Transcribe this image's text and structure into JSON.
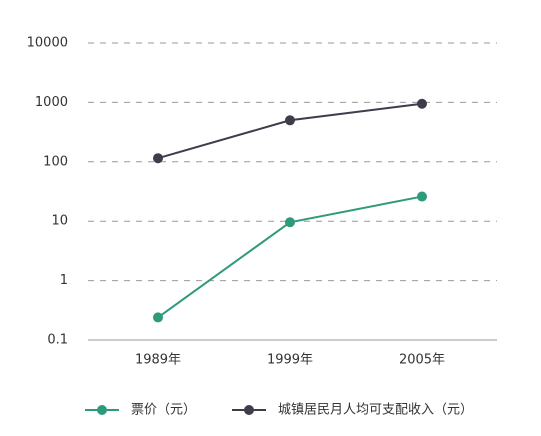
{
  "chart_data": {
    "type": "line",
    "categories": [
      "1989年",
      "1999年",
      "2005年"
    ],
    "series": [
      {
        "name": "票价（元）",
        "color": "#2e9a7c",
        "values": [
          0.24,
          9.6,
          26
        ]
      },
      {
        "name": "城镇居民月人均可支配收入（元）",
        "color": "#3d3d4b",
        "values": [
          115,
          500,
          950
        ]
      }
    ],
    "ylim": [
      0.1,
      10000
    ],
    "yticks": [
      0.1,
      1,
      10,
      100,
      1000,
      10000
    ],
    "log_y": true,
    "grid": true,
    "legend": "bottom"
  }
}
